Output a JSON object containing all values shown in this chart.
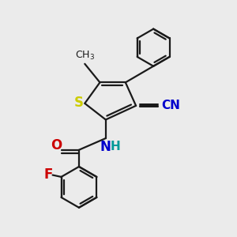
{
  "background_color": "#ebebeb",
  "bond_color": "#1a1a1a",
  "bond_width": 1.6,
  "figsize": [
    3.0,
    3.0
  ],
  "dpi": 100,
  "atom_labels": {
    "S": {
      "color": "#cccc00",
      "fontsize": 12,
      "fontweight": "bold"
    },
    "N_amide": {
      "color": "#0000cc",
      "fontsize": 12,
      "fontweight": "bold"
    },
    "H": {
      "color": "#009999",
      "fontsize": 11,
      "fontweight": "bold"
    },
    "O": {
      "color": "#cc0000",
      "fontsize": 12,
      "fontweight": "bold"
    },
    "F": {
      "color": "#cc0000",
      "fontsize": 12,
      "fontweight": "bold"
    },
    "CN": {
      "color": "#0000cc",
      "fontsize": 11,
      "fontweight": "bold"
    },
    "CH3": {
      "color": "#1a1a1a",
      "fontsize": 9,
      "fontweight": "normal"
    }
  }
}
